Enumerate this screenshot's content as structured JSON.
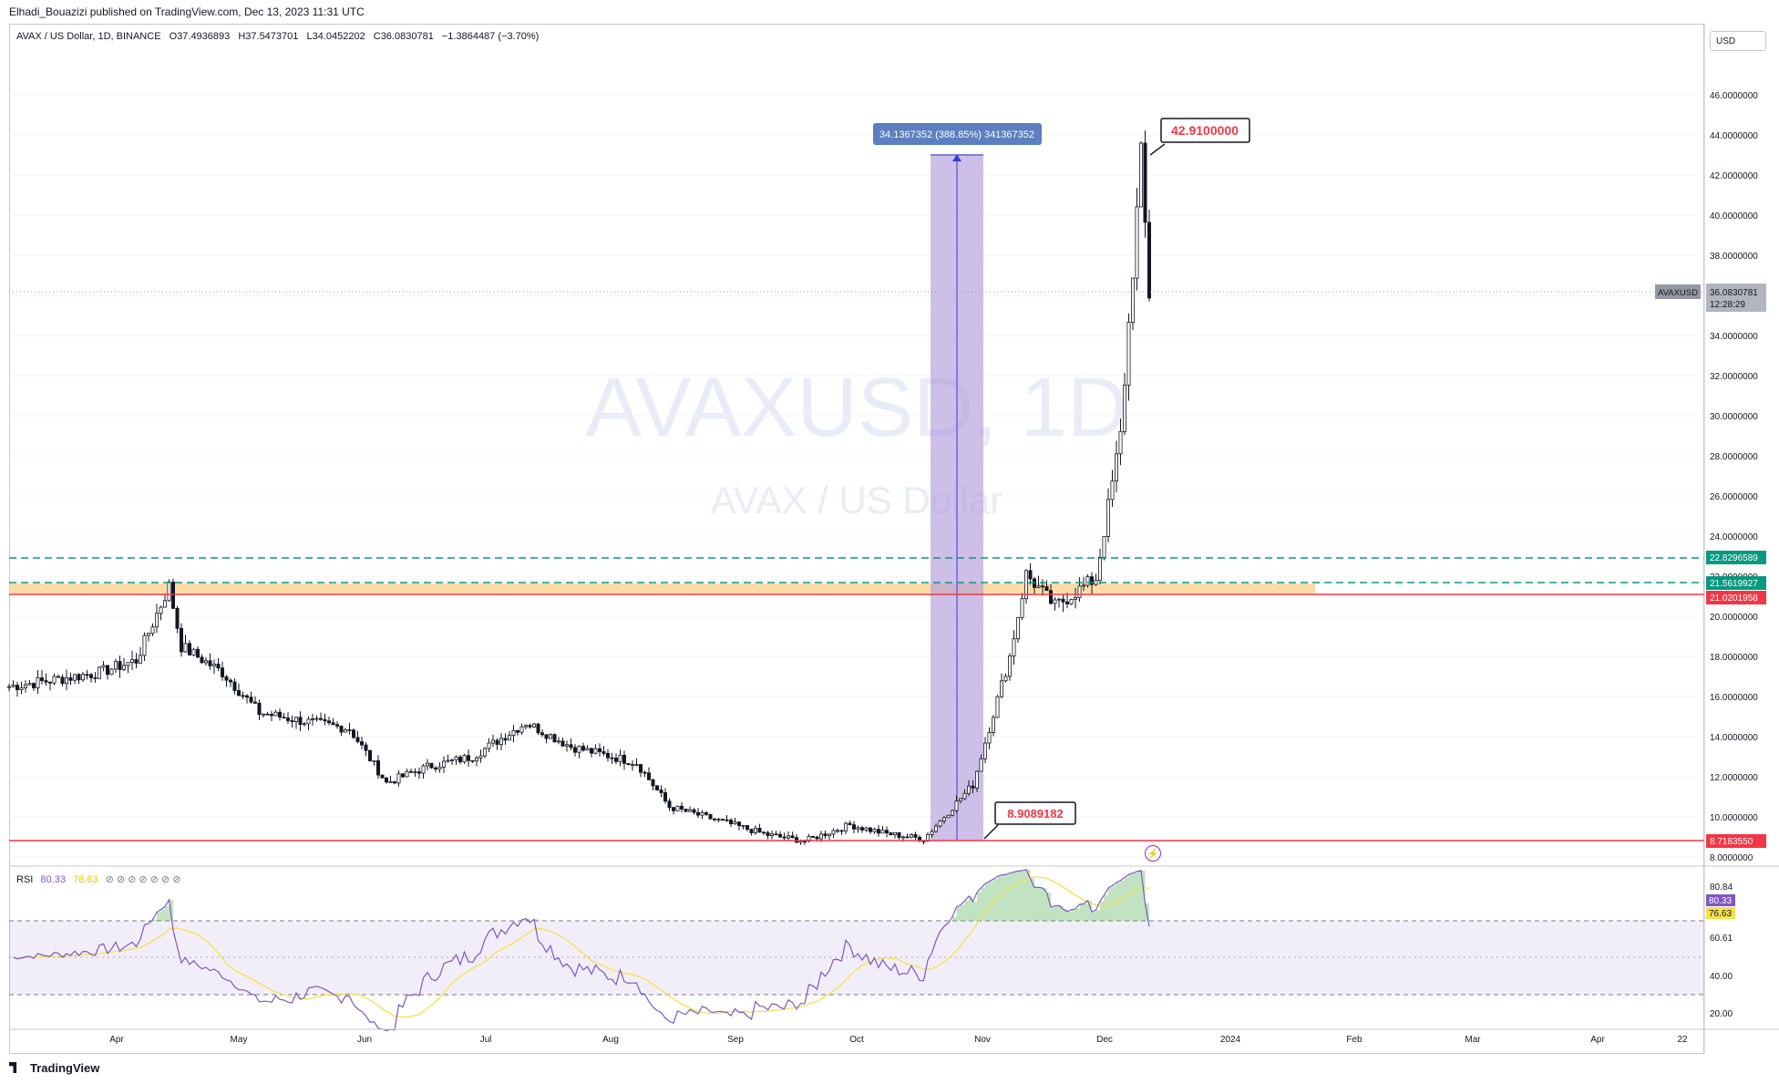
{
  "header": {
    "published_by": "Elhadi_Bouazizi published on TradingView.com, Dec 13, 2023 11:31 UTC"
  },
  "symbol_info": {
    "name": "AVAX / US Dollar, 1D, BINANCE",
    "open": "O37.4936893",
    "high": "H37.5473701",
    "low": "L34.0452202",
    "close": "C36.0830781",
    "change": "−1.3864487 (−3.70%)"
  },
  "currency": "USD",
  "watermark": {
    "line1": "AVAXUSD, 1D",
    "line2": "AVAX / US Dollar"
  },
  "colors": {
    "up": "#089981",
    "down": "#f23645",
    "candle": "#131722",
    "rsi": "#7e57c2",
    "rsi_ma": "#f7e04a",
    "zone": "#ffcc80",
    "resistance": "#f23645",
    "teal": "#089981",
    "measure": "#b39ddb"
  },
  "annotations": {
    "measure_label": "34.1367352 (388.85%) 341367352",
    "peak_label": "42.9100000",
    "bottom_label": "8.9089182",
    "symbol_tag": "AVAXUSD",
    "price_tag": "36.0830781",
    "countdown": "12:28:29",
    "level_1": "22.8296589",
    "level_2": "21.5619927",
    "level_3": "21.0201958",
    "level_4": "8.7183550"
  },
  "rsi": {
    "title": "RSI",
    "value": "80.33",
    "ma_value": "76.63",
    "axis": [
      "80.84",
      "60.61",
      "40.00",
      "20.00"
    ],
    "tag_rsi": "80.33",
    "tag_ma": "76.63"
  },
  "footer": {
    "brand": "TradingView"
  },
  "chart_data": {
    "type": "candlestick",
    "title": "AVAX / US Dollar, 1D, BINANCE",
    "ylim": [
      7,
      47
    ],
    "y_ticks": [
      "8.0000000",
      "10.0000000",
      "12.0000000",
      "14.0000000",
      "16.0000000",
      "18.0000000",
      "20.0000000",
      "22.0000000",
      "24.0000000",
      "26.0000000",
      "28.0000000",
      "30.0000000",
      "32.0000000",
      "34.0000000",
      "36.0000000",
      "38.0000000",
      "40.0000000",
      "42.0000000",
      "44.0000000",
      "46.0000000"
    ],
    "x_ticks": [
      "Apr",
      "May",
      "Jun",
      "Jul",
      "Aug",
      "Sep",
      "Oct",
      "Nov",
      "Dec",
      "2024",
      "Feb",
      "Mar",
      "Apr",
      "22"
    ],
    "close_path": [
      {
        "date": "2023-03-10",
        "close": 16.5
      },
      {
        "date": "2023-03-20",
        "close": 16.8
      },
      {
        "date": "2023-04-01",
        "close": 17.2
      },
      {
        "date": "2023-04-10",
        "close": 17.8
      },
      {
        "date": "2023-04-18",
        "close": 21.5
      },
      {
        "date": "2023-04-21",
        "close": 18.5
      },
      {
        "date": "2023-05-01",
        "close": 17.2
      },
      {
        "date": "2023-05-10",
        "close": 15.2
      },
      {
        "date": "2023-05-20",
        "close": 14.8
      },
      {
        "date": "2023-06-01",
        "close": 14.4
      },
      {
        "date": "2023-06-10",
        "close": 11.7
      },
      {
        "date": "2023-06-20",
        "close": 12.5
      },
      {
        "date": "2023-07-01",
        "close": 13.0
      },
      {
        "date": "2023-07-14",
        "close": 14.7
      },
      {
        "date": "2023-07-25",
        "close": 13.5
      },
      {
        "date": "2023-08-10",
        "close": 12.7
      },
      {
        "date": "2023-08-18",
        "close": 10.5
      },
      {
        "date": "2023-09-01",
        "close": 9.7
      },
      {
        "date": "2023-09-11",
        "close": 9.1
      },
      {
        "date": "2023-09-20",
        "close": 8.8
      },
      {
        "date": "2023-10-01",
        "close": 9.6
      },
      {
        "date": "2023-10-09",
        "close": 9.2
      },
      {
        "date": "2023-10-19",
        "close": 8.9
      },
      {
        "date": "2023-10-31",
        "close": 11.6
      },
      {
        "date": "2023-11-09",
        "close": 18.0
      },
      {
        "date": "2023-11-13",
        "close": 22.1
      },
      {
        "date": "2023-11-20",
        "close": 20.5
      },
      {
        "date": "2023-11-30",
        "close": 21.9
      },
      {
        "date": "2023-12-06",
        "close": 29.0
      },
      {
        "date": "2023-12-11",
        "close": 42.9
      },
      {
        "date": "2023-12-13",
        "close": 36.08
      }
    ],
    "levels": [
      22.8296589,
      21.5619927,
      21.0201958,
      8.718355
    ]
  }
}
